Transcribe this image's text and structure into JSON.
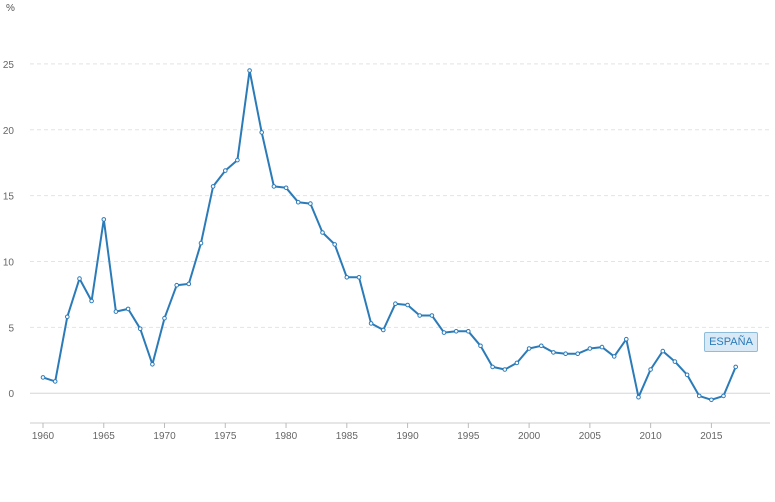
{
  "chart_data": {
    "type": "line",
    "y_unit_label": "%",
    "x_ticks": [
      "1960",
      "1965",
      "1970",
      "1975",
      "1980",
      "1985",
      "1990",
      "1995",
      "2000",
      "2005",
      "2010",
      "2015"
    ],
    "y_ticks": [
      "0",
      "5",
      "10",
      "15",
      "20",
      "25"
    ],
    "xlim": [
      1960,
      2019
    ],
    "ylim": [
      -1.5,
      27.5
    ],
    "grid": true,
    "series": [
      {
        "name": "ESPAÑA",
        "color": "#2b7bb9",
        "x": [
          1960,
          1961,
          1962,
          1963,
          1964,
          1965,
          1966,
          1967,
          1968,
          1969,
          1970,
          1971,
          1972,
          1973,
          1974,
          1975,
          1976,
          1977,
          1978,
          1979,
          1980,
          1981,
          1982,
          1983,
          1984,
          1985,
          1986,
          1987,
          1988,
          1989,
          1990,
          1991,
          1992,
          1993,
          1994,
          1995,
          1996,
          1997,
          1998,
          1999,
          2000,
          2001,
          2002,
          2003,
          2004,
          2005,
          2006,
          2007,
          2008,
          2009,
          2010,
          2011,
          2012,
          2013,
          2014,
          2015,
          2016,
          2017
        ],
        "values": [
          1.2,
          0.9,
          5.8,
          8.7,
          7.0,
          13.2,
          6.2,
          6.4,
          4.9,
          2.2,
          5.7,
          8.2,
          8.3,
          11.4,
          15.7,
          16.9,
          17.7,
          24.5,
          19.8,
          15.7,
          15.6,
          14.5,
          14.4,
          12.2,
          11.3,
          8.8,
          8.8,
          5.3,
          4.8,
          6.8,
          6.7,
          5.9,
          5.9,
          4.6,
          4.7,
          4.7,
          3.6,
          2.0,
          1.8,
          2.3,
          3.4,
          3.6,
          3.1,
          3.0,
          3.0,
          3.4,
          3.5,
          2.8,
          4.1,
          -0.3,
          1.8,
          3.2,
          2.4,
          1.4,
          -0.2,
          -0.5,
          -0.2,
          2.0
        ]
      }
    ]
  }
}
